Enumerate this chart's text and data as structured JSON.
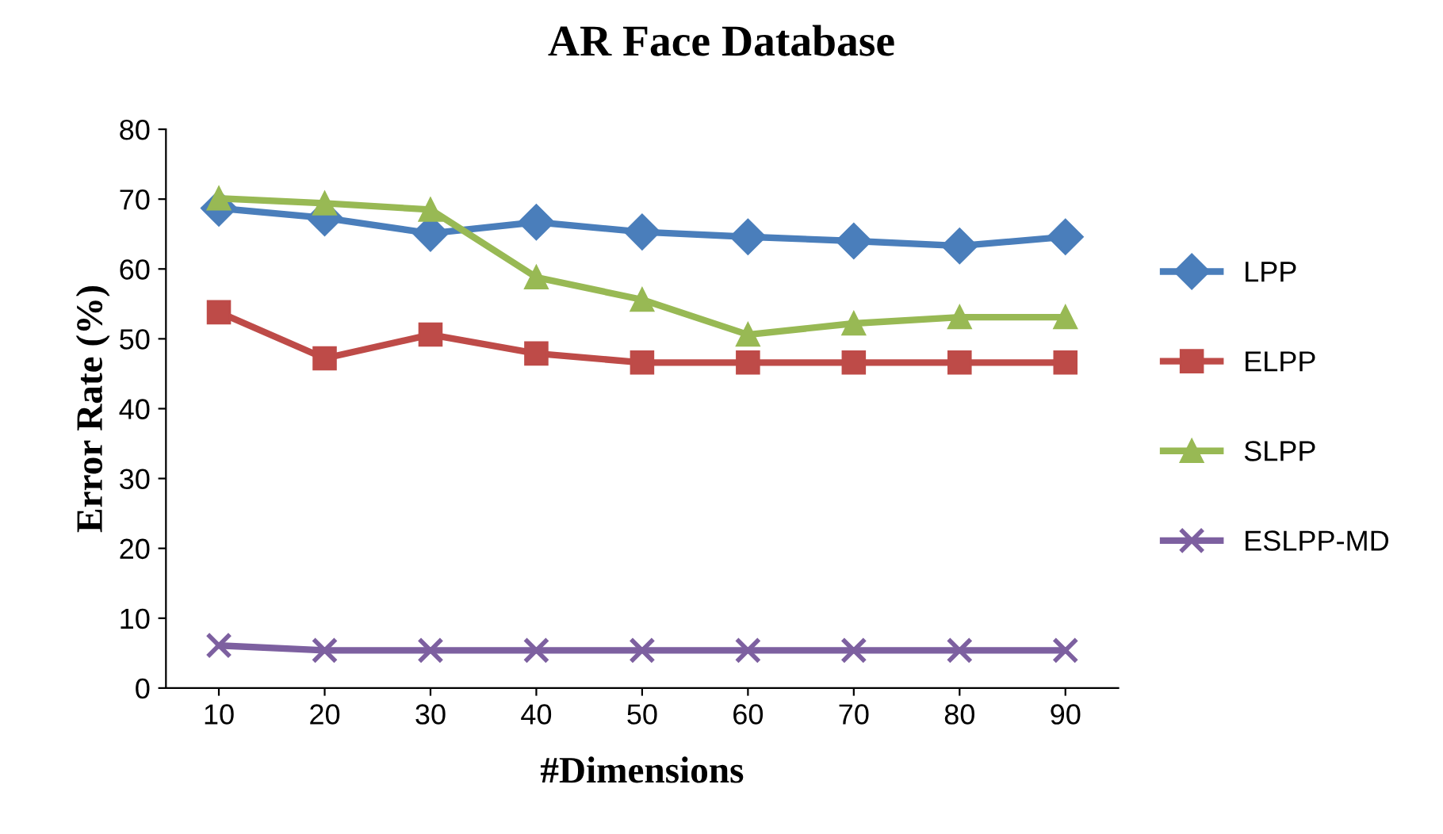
{
  "chart_data": {
    "type": "line",
    "title": "AR Face Database",
    "xlabel": "#Dimensions",
    "ylabel": "Error Rate (%)",
    "categories": [
      "10",
      "20",
      "30",
      "40",
      "50",
      "60",
      "70",
      "80",
      "90"
    ],
    "series": [
      {
        "name": "LPP",
        "color": "#4a7ebb",
        "marker": "diamond",
        "values": [
          68.7,
          67.3,
          65.1,
          66.7,
          65.3,
          64.6,
          64.0,
          63.3,
          64.6
        ]
      },
      {
        "name": "ELPP",
        "color": "#be4b48",
        "marker": "square",
        "values": [
          53.8,
          47.2,
          50.6,
          47.9,
          46.6,
          46.6,
          46.6,
          46.6,
          46.6
        ]
      },
      {
        "name": "SLPP",
        "color": "#98b954",
        "marker": "triangle",
        "values": [
          70.1,
          69.4,
          68.5,
          58.8,
          55.6,
          50.6,
          52.2,
          53.1,
          53.1
        ]
      },
      {
        "name": "ESLPP-MD",
        "color": "#7d60a0",
        "marker": "cross",
        "values": [
          6.1,
          5.4,
          5.4,
          5.4,
          5.4,
          5.4,
          5.4,
          5.4,
          5.4
        ]
      }
    ],
    "ylim": [
      0,
      80
    ],
    "yticks": [
      0,
      10,
      20,
      30,
      40,
      50,
      60,
      70,
      80
    ],
    "grid": false,
    "legend": "right",
    "line_style": "solid"
  }
}
